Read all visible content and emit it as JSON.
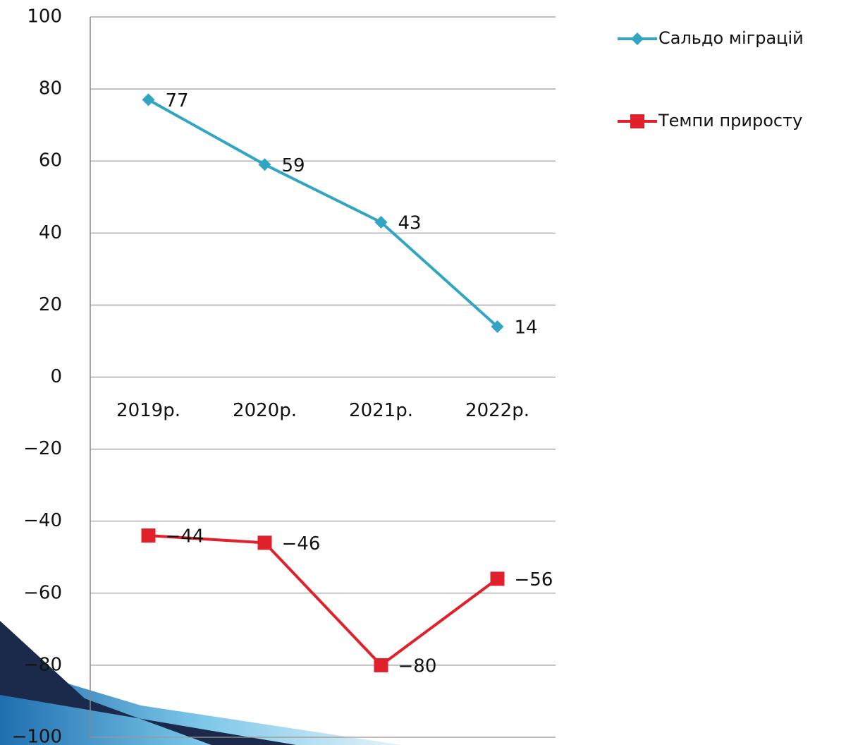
{
  "chart_data": {
    "type": "line",
    "categories": [
      "2019р.",
      "2020р.",
      "2021р.",
      "2022р."
    ],
    "series": [
      {
        "name": "Сальдо міграцій",
        "color": "#31a5c2",
        "marker": "diamond",
        "values": [
          77,
          59,
          43,
          14
        ]
      },
      {
        "name": "Темпи приросту",
        "color": "#e0202b",
        "marker": "square",
        "values": [
          -44,
          -46,
          -80,
          -56
        ],
        "value_labels": [
          "−44",
          "−46",
          "−80",
          "−56"
        ]
      }
    ],
    "ylim": [
      -100,
      100
    ],
    "yticks": [
      {
        "value": -100,
        "label": "−100"
      },
      {
        "value": -80,
        "label": "−80"
      },
      {
        "value": -60,
        "label": "−60"
      },
      {
        "value": -40,
        "label": "−40"
      },
      {
        "value": -20,
        "label": "−20"
      },
      0,
      20,
      40,
      60,
      80,
      100
    ],
    "grid": true,
    "legend": "right"
  }
}
